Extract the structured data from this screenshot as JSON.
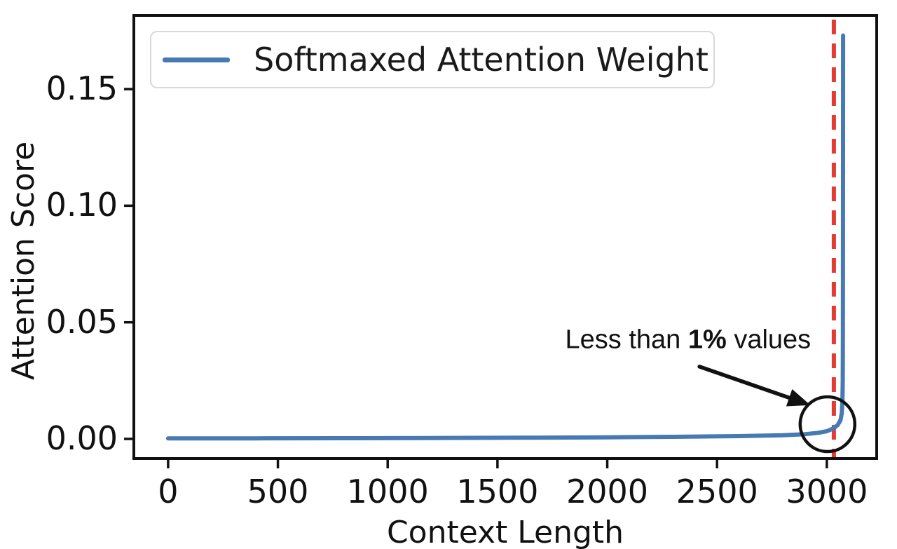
{
  "chart_data": {
    "type": "line",
    "title": "",
    "xlabel": "Context Length",
    "ylabel": "Attention Score",
    "xlim": [
      -156,
      3227
    ],
    "ylim": [
      -0.00842,
      0.18159
    ],
    "x_ticks": [
      0,
      500,
      1000,
      1500,
      2000,
      2500,
      3000
    ],
    "y_ticks": [
      {
        "value": 0.0,
        "label": "0.00"
      },
      {
        "value": 0.05,
        "label": "0.05"
      },
      {
        "value": 0.1,
        "label": "0.10"
      },
      {
        "value": 0.15,
        "label": "0.15"
      }
    ],
    "grid": false,
    "frame_color": "#111111",
    "legend": {
      "position": "upper left",
      "entries": [
        {
          "label": "Softmaxed Attention Weight",
          "color": "#4779b2"
        }
      ]
    },
    "series": [
      {
        "name": "Softmaxed Attention Weight",
        "color": "#4779b2",
        "line_width": 6,
        "points": [
          [
            0,
            0.0002
          ],
          [
            400,
            0.00025
          ],
          [
            800,
            0.0003
          ],
          [
            1200,
            0.0004
          ],
          [
            1600,
            0.0005
          ],
          [
            2000,
            0.0007
          ],
          [
            2300,
            0.0009
          ],
          [
            2600,
            0.0012
          ],
          [
            2800,
            0.0016
          ],
          [
            2900,
            0.002
          ],
          [
            2960,
            0.0026
          ],
          [
            3000,
            0.0033
          ],
          [
            3030,
            0.0045
          ],
          [
            3050,
            0.006
          ],
          [
            3062,
            0.008
          ],
          [
            3068,
            0.011
          ],
          [
            3071,
            0.016
          ],
          [
            3072.5,
            0.025
          ],
          [
            3073.2,
            0.045
          ],
          [
            3073.6,
            0.08
          ],
          [
            3073.8,
            0.12
          ],
          [
            3074,
            0.173
          ]
        ]
      }
    ],
    "vline": {
      "x": 3032,
      "color": "#e23b30",
      "style": "dashed",
      "line_width": 6
    },
    "annotation": {
      "text_prefix": "Less than ",
      "text_bold": "1%",
      "text_suffix": " values",
      "text_x": 2368,
      "text_y": 0.0425,
      "arrow_tail": [
        2420,
        0.031
      ],
      "arrow_tip": [
        2925,
        0.0145
      ],
      "circle": {
        "x": 3003,
        "y": 0.0063,
        "radius_px": 39
      },
      "color": "#111111"
    }
  }
}
